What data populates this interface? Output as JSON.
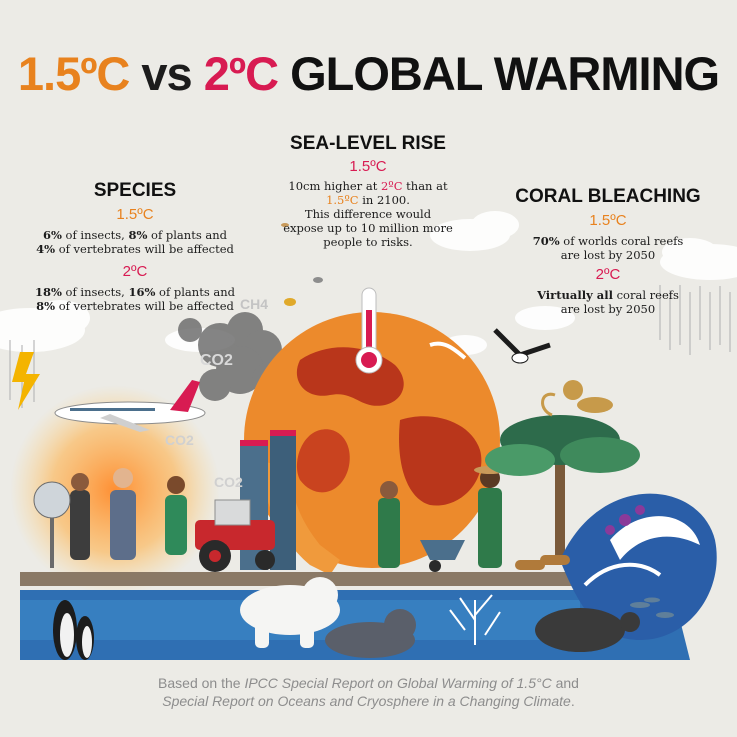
{
  "title": {
    "part1": "1.5ºC",
    "part2": "vs",
    "part3": "2ºC",
    "part4": "GLOBAL WARMING"
  },
  "species": {
    "heading": "SPECIES",
    "low_label": "1.5ºC",
    "low_text": {
      "p1": "6%",
      "p2": " of insects, ",
      "p3": "8%",
      "p4": " of plants and",
      "p5": "4%",
      "p6": " of vertebrates will be affected"
    },
    "high_label": "2ºC",
    "high_text": {
      "p1": "18%",
      "p2": " of insects, ",
      "p3": "16%",
      "p4": " of plants and",
      "p5": "8%",
      "p6": " of vertebrates will be affected"
    }
  },
  "sea_level": {
    "heading": "SEA-LEVEL RISE",
    "label": "1.5ºC",
    "text": {
      "p1": "10cm higher at ",
      "p2": "2ºC",
      "p3": " than at",
      "p4": "1.5ºC",
      "p5": " in 2100.",
      "p6": "This difference would",
      "p7": "expose up to 10 million more",
      "p8": "people to risks."
    }
  },
  "coral": {
    "heading": "CORAL BLEACHING",
    "low_label": "1.5ºC",
    "low_text": {
      "p1": "70%",
      "p2": " of worlds coral reefs",
      "p3": "are lost by 2050"
    },
    "high_label": "2ºC",
    "high_text": {
      "p1": "Virtually all",
      "p2": " coral reefs",
      "p3": "are lost by 2050"
    }
  },
  "scene_labels": {
    "ch4": "CH4",
    "co2_a": "CO2",
    "co2_b": "CO2",
    "co2_c": "CO2"
  },
  "footer": {
    "l1a": "Based on the ",
    "l1b": "IPCC Special Report on Global Warming of 1.5°C",
    "l1c": " and",
    "l2a": "Special Report on Oceans and Cryosphere in a Changing Climate",
    "l2b": "."
  },
  "colors": {
    "orange": "#e8821e",
    "red": "#d81b52",
    "text": "#1c1c1c",
    "background": "#ecebe6",
    "ocean": "#2f6fb3"
  }
}
